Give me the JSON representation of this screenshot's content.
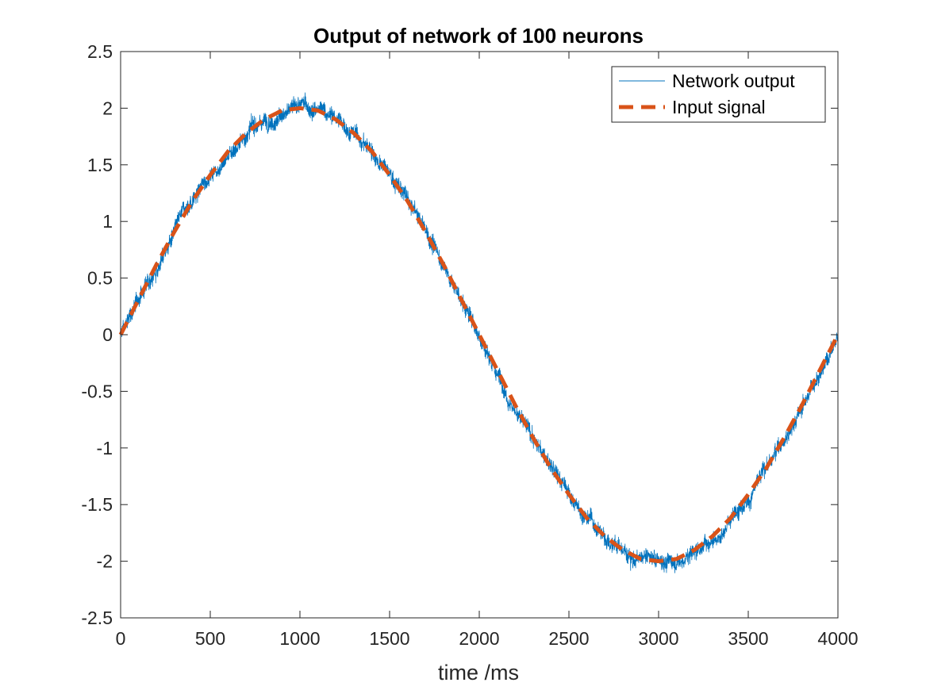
{
  "chart_data": {
    "type": "line",
    "title": "Output of network of 100 neurons",
    "xlabel": "time /ms",
    "ylabel": "",
    "xlim": [
      0,
      4000
    ],
    "ylim": [
      -2.5,
      2.5
    ],
    "xticks": [
      0,
      500,
      1000,
      1500,
      2000,
      2500,
      3000,
      3500,
      4000
    ],
    "xtick_labels": [
      "0",
      "500",
      "1000",
      "1500",
      "2000",
      "2500",
      "3000",
      "3500",
      "4000"
    ],
    "yticks": [
      2.5,
      2,
      1.5,
      1,
      0.5,
      0,
      -0.5,
      -1,
      -1.5,
      -2,
      -2.5
    ],
    "ytick_labels": [
      "2.5",
      "2",
      "1.5",
      "1",
      "0.5",
      "0",
      "-0.5",
      "-1",
      "-1.5",
      "-2",
      "-2.5"
    ],
    "grid": false,
    "legend_position": "top-right",
    "series": [
      {
        "name": "Network output",
        "color": "#0072BD",
        "style": "solid-noisy",
        "description_of_values": "2*sin(2*pi*t/4000) plus noise of roughly +/-0.2",
        "x": [
          0,
          100,
          200,
          300,
          400,
          500,
          600,
          700,
          800,
          900,
          1000,
          1100,
          1200,
          1300,
          1400,
          1500,
          1600,
          1700,
          1800,
          1900,
          2000,
          2100,
          2200,
          2300,
          2400,
          2500,
          2600,
          2700,
          2800,
          2900,
          3000,
          3100,
          3200,
          3300,
          3400,
          3500,
          3600,
          3700,
          3800,
          3900,
          4000
        ],
        "y": [
          0.0,
          0.31,
          0.62,
          0.91,
          1.18,
          1.41,
          1.62,
          1.78,
          1.9,
          1.98,
          2.0,
          1.98,
          1.9,
          1.78,
          1.62,
          1.41,
          1.18,
          0.91,
          0.62,
          0.31,
          0.0,
          -0.31,
          -0.62,
          -0.91,
          -1.18,
          -1.41,
          -1.62,
          -1.78,
          -1.9,
          -1.98,
          -2.0,
          -1.98,
          -1.9,
          -1.78,
          -1.62,
          -1.41,
          -1.18,
          -0.91,
          -0.62,
          -0.31,
          0.0
        ]
      },
      {
        "name": "Input signal",
        "color": "#D95319",
        "style": "dashed",
        "x": [
          0,
          100,
          200,
          300,
          400,
          500,
          600,
          700,
          800,
          900,
          1000,
          1100,
          1200,
          1300,
          1400,
          1500,
          1600,
          1700,
          1800,
          1900,
          2000,
          2100,
          2200,
          2300,
          2400,
          2500,
          2600,
          2700,
          2800,
          2900,
          3000,
          3100,
          3200,
          3300,
          3400,
          3500,
          3600,
          3700,
          3800,
          3900,
          4000
        ],
        "y": [
          0.0,
          0.31,
          0.62,
          0.91,
          1.18,
          1.41,
          1.62,
          1.78,
          1.9,
          1.98,
          2.0,
          1.98,
          1.9,
          1.78,
          1.62,
          1.41,
          1.18,
          0.91,
          0.62,
          0.31,
          0.0,
          -0.31,
          -0.62,
          -0.91,
          -1.18,
          -1.41,
          -1.62,
          -1.78,
          -1.9,
          -1.98,
          -2.0,
          -1.98,
          -1.9,
          -1.78,
          -1.62,
          -1.41,
          -1.18,
          -0.91,
          -0.62,
          -0.31,
          0.0
        ]
      }
    ]
  }
}
